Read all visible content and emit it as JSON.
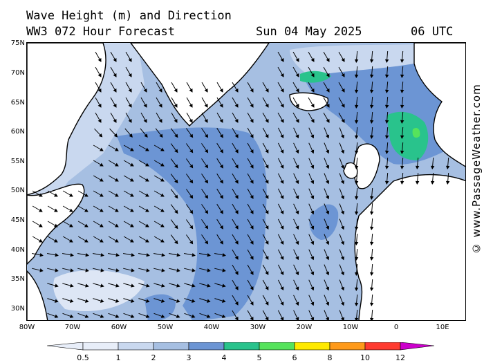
{
  "header": {
    "line1": "Wave Height (m) and Direction",
    "line2": "WW3 072 Hour Forecast",
    "date": "Sun 04 May 2025",
    "time": "06 UTC"
  },
  "watermark": "© www.PassageWeather.com",
  "map": {
    "lat_labels": [
      "75N",
      "70N",
      "65N",
      "60N",
      "55N",
      "50N",
      "45N",
      "40N",
      "35N",
      "30N"
    ],
    "lon_labels": [
      "80W",
      "70W",
      "60W",
      "50W",
      "40W",
      "30W",
      "20W",
      "10W",
      "0",
      "10E"
    ],
    "colors": {
      "land": "#ffffff",
      "coast": "#000000",
      "sea_lt05": "#dde6f5",
      "sea_05_1": "#c9d8ef",
      "sea_1_2": "#a6bfe2",
      "sea_2_3": "#6c95d4",
      "sea_3_4": "#29c38c",
      "sea_4_5": "#56e35c"
    }
  },
  "legend": {
    "labels": [
      "0.5",
      "1",
      "2",
      "3",
      "4",
      "5",
      "6",
      "8",
      "10",
      "12"
    ],
    "colors": [
      "#e8eef9",
      "#c9d8ef",
      "#a6bfe2",
      "#6c95d4",
      "#29c38c",
      "#56e35c",
      "#ffea00",
      "#ff9a1a",
      "#ff3b30",
      "#cc0000",
      "#cc00cc"
    ]
  }
}
